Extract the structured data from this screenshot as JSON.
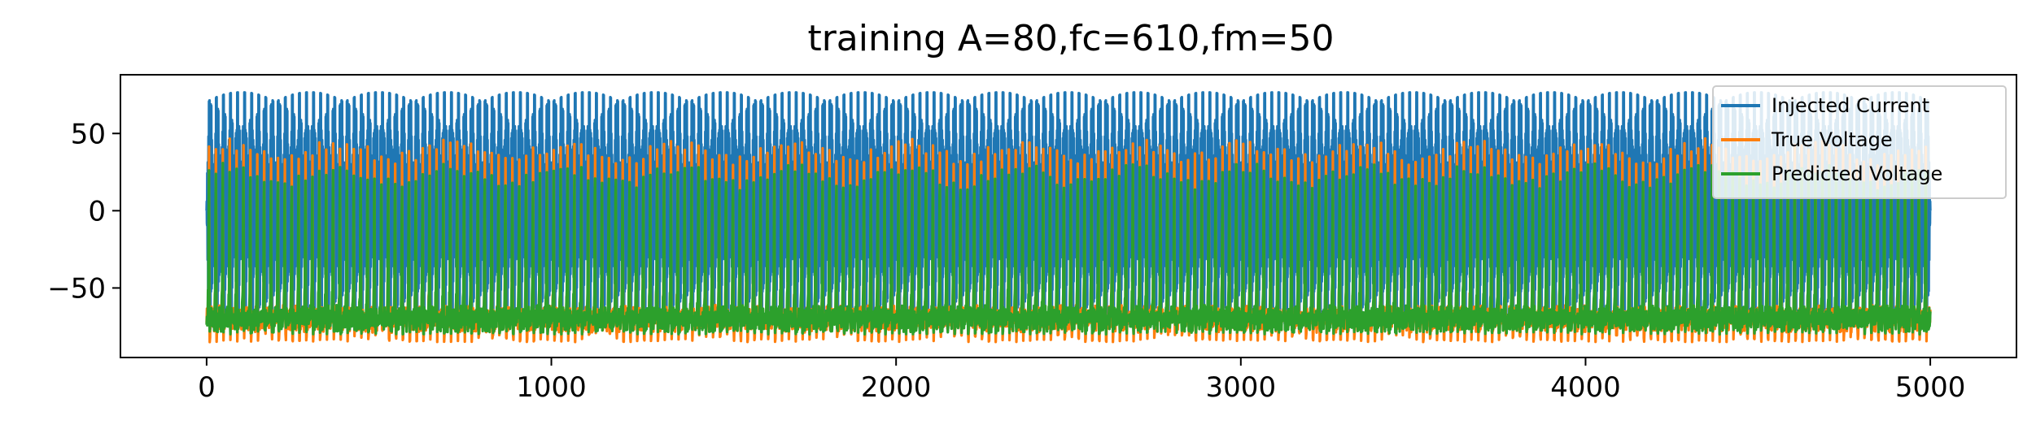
{
  "chart_data": {
    "type": "line",
    "title": "training A=80,fc=610,fm=50",
    "xlabel": "",
    "ylabel": "",
    "xlim": [
      -250,
      5250
    ],
    "ylim": [
      -95,
      88
    ],
    "x_ticks": [
      0,
      1000,
      2000,
      3000,
      4000,
      5000
    ],
    "x_tick_labels": [
      "0",
      "1000",
      "2000",
      "3000",
      "4000",
      "5000"
    ],
    "y_ticks": [
      50,
      0,
      -50
    ],
    "y_tick_labels": [
      "50",
      "0",
      "−50"
    ],
    "grid": false,
    "legend_position": "upper right",
    "series": [
      {
        "name": "Injected Current",
        "color": "#1f77b4",
        "x_range": [
          0,
          5000
        ],
        "amplitude": 80,
        "carrier_freq_cycles_per_1000": 610,
        "mod_freq_cycles_per_1000": 50,
        "description_values": {
          "min": -80,
          "max": 80
        }
      },
      {
        "name": "True Voltage",
        "color": "#ff7f0e",
        "x_range": [
          0,
          5000
        ],
        "spike_period": 20,
        "baseline": -70,
        "spike_peak": 38,
        "min": -85
      },
      {
        "name": "Predicted Voltage",
        "color": "#2ca02c",
        "x_range": [
          0,
          5000
        ],
        "spike_period": 20,
        "baseline": -70,
        "spike_peak": 37,
        "min": -80
      }
    ]
  }
}
